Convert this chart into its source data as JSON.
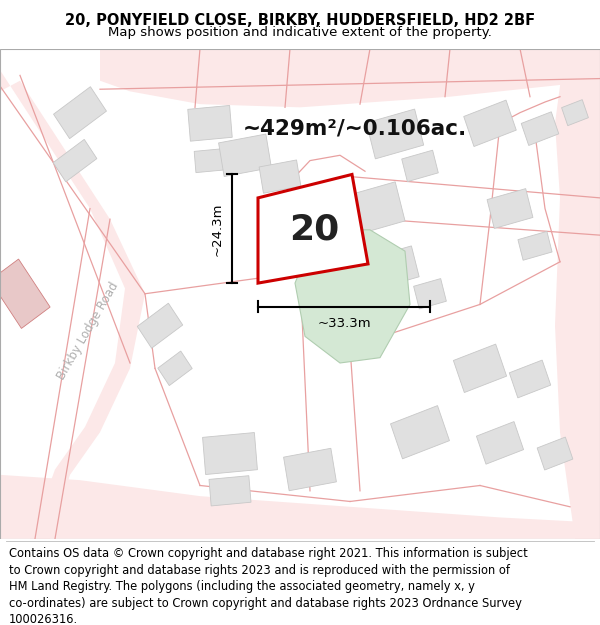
{
  "title_line1": "20, PONYFIELD CLOSE, BIRKBY, HUDDERSFIELD, HD2 2BF",
  "title_line2": "Map shows position and indicative extent of the property.",
  "area_text": "~429m²/~0.106ac.",
  "label_number": "20",
  "dim_height": "~24.3m",
  "dim_width": "~33.3m",
  "footer_text": "Contains OS data © Crown copyright and database right 2021. This information is subject\nto Crown copyright and database rights 2023 and is reproduced with the permission of\nHM Land Registry. The polygons (including the associated geometry, namely x, y\nco-ordinates) are subject to Crown copyright and database rights 2023 Ordnance Survey\n100026316.",
  "map_bg": "#ffffff",
  "road_fill": "#fce8e8",
  "road_line": "#e8a0a0",
  "building_fill": "#e0e0e0",
  "building_edge": "#c8c8c8",
  "plot_fill": "#ffffff",
  "plot_outline": "#cc0000",
  "green_fill": "#d4e8d4",
  "green_edge": "#b0cdb0",
  "dim_color": "#000000",
  "road_label_color": "#b0b0b0",
  "number_color": "#222222",
  "title_fontsize": 10.5,
  "subtitle_fontsize": 9.5,
  "footer_fontsize": 8.3,
  "area_fontsize": 15.5,
  "number_fontsize": 26,
  "dim_fontsize": 9.5,
  "road_fontsize": 8.5
}
